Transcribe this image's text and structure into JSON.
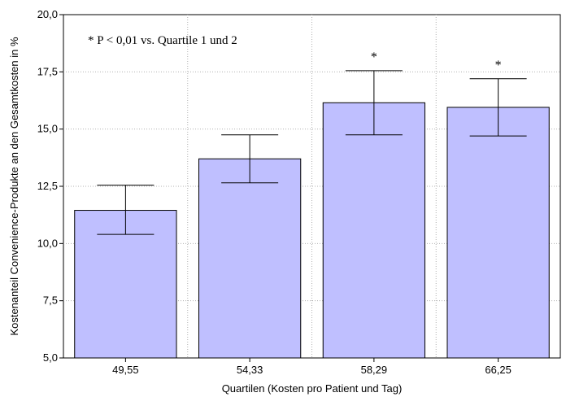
{
  "chart_data": {
    "type": "bar",
    "categories": [
      "49,55",
      "54,33",
      "58,29",
      "66,25"
    ],
    "values": [
      11.45,
      13.7,
      16.15,
      15.95
    ],
    "error_low": [
      10.4,
      12.65,
      14.75,
      14.7
    ],
    "error_high": [
      12.55,
      14.75,
      17.55,
      17.2
    ],
    "significance": [
      "",
      "",
      "*",
      "*"
    ],
    "ylim": [
      5.0,
      20.0
    ],
    "yticks": [
      5.0,
      7.5,
      10.0,
      12.5,
      15.0,
      17.5,
      20.0
    ],
    "ytick_labels": [
      "5,0",
      "7,5",
      "10,0",
      "12,5",
      "15,0",
      "17,5",
      "20,0"
    ],
    "xlabel": "Quartilen (Kosten pro Patient und Tag)",
    "ylabel": "Kostenanteil Convenience-Produkte an den Gesamtkosten in %",
    "annotation": "* P < 0,01 vs. Quartile 1 und 2",
    "grid": true,
    "colors": {
      "bar_fill": "#bfbfff",
      "bar_stroke": "#000000",
      "grid": "#b0b0b0"
    }
  }
}
